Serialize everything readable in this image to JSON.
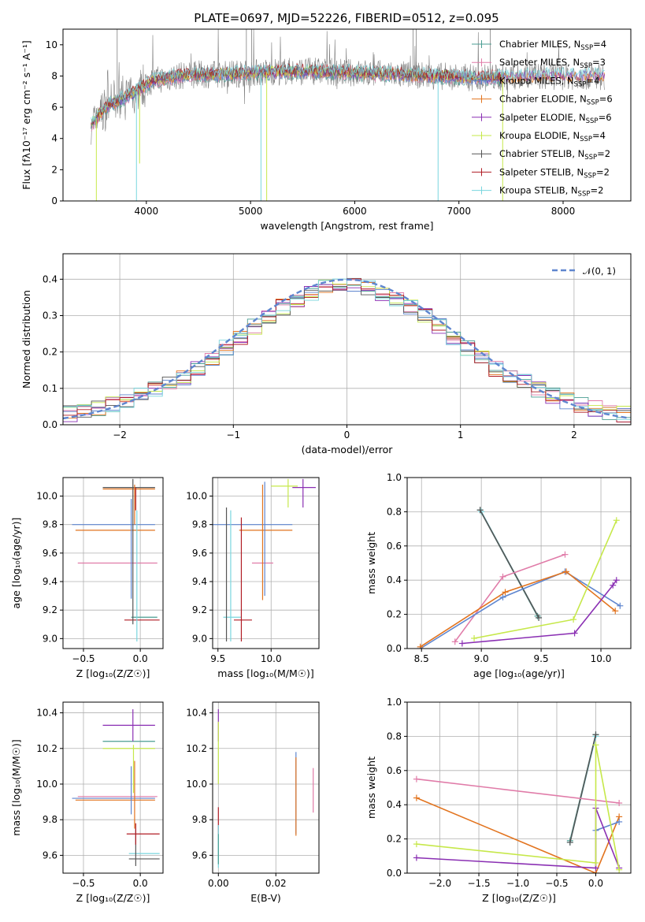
{
  "title": "PLATE=0697, MJD=52226, FIBERID=0512, z=0.095",
  "colors": {
    "s1": "#4a9e93",
    "s2": "#e07ba8",
    "s3": "#5f86cf",
    "s4": "#e2741f",
    "s5": "#8a2fb3",
    "s6": "#c6e84a",
    "s7": "#555555",
    "s8": "#b01d25",
    "s9": "#79d6de",
    "gauss": "#5f86cf"
  },
  "chart_data": [
    {
      "type": "line",
      "id": "spectrum",
      "title": "PLATE=0697, MJD=52226, FIBERID=0512, z=0.095",
      "xlabel": "wavelength [Angstrom, rest frame]",
      "ylabel": "Flux [fλ10⁻¹⁷ erg cm⁻² s⁻¹ A⁻¹]",
      "xlim": [
        3200,
        8650
      ],
      "ylim": [
        0,
        11
      ],
      "xticks": [
        "4000",
        "5000",
        "6000",
        "7000",
        "8000"
      ],
      "yticks": [
        "0",
        "2",
        "4",
        "6",
        "8",
        "10"
      ],
      "legend_position": "right",
      "legend": [
        {
          "model": "Chabrier MILES",
          "n": "4"
        },
        {
          "model": "Salpeter MILES",
          "n": "3"
        },
        {
          "model": "Kroupa MILES",
          "n": "4"
        },
        {
          "model": "Chabrier ELODIE",
          "n": "6"
        },
        {
          "model": "Salpeter ELODIE",
          "n": "6"
        },
        {
          "model": "Kroupa ELODIE",
          "n": "4"
        },
        {
          "model": "Chabrier STELIB",
          "n": "2"
        },
        {
          "model": "Salpeter STELIB",
          "n": "2"
        },
        {
          "model": "Kroupa STELIB",
          "n": "2"
        }
      ],
      "continuum": {
        "x": [
          3470,
          3550,
          3650,
          3750,
          3850,
          3950,
          4050,
          4150,
          4300,
          4500,
          4700,
          5000,
          5300,
          5600,
          6000,
          6400,
          6800,
          7100,
          7400,
          7700,
          8000,
          8300
        ],
        "y": [
          4.8,
          5.6,
          6.2,
          6.5,
          6.8,
          7.2,
          7.7,
          7.8,
          8.0,
          8.1,
          8.1,
          8.2,
          8.3,
          8.3,
          8.2,
          8.1,
          8.0,
          7.9,
          7.9,
          8.0,
          8.0,
          8.0
        ]
      },
      "dips": [
        {
          "x": 3520,
          "y": 0.0
        },
        {
          "x": 3905,
          "y": 0.0
        },
        {
          "x": 3935,
          "y": 2.4
        },
        {
          "x": 5100,
          "y": 0.0
        },
        {
          "x": 5155,
          "y": 0.0
        },
        {
          "x": 6800,
          "y": 0.0
        },
        {
          "x": 7420,
          "y": 0.0
        }
      ],
      "spikes": [
        {
          "x": 3720,
          "y": 11
        },
        {
          "x": 4960,
          "y": 11
        },
        {
          "x": 5010,
          "y": 11
        },
        {
          "x": 6560,
          "y": 11
        },
        {
          "x": 6590,
          "y": 11
        },
        {
          "x": 7300,
          "y": 11
        }
      ]
    },
    {
      "type": "line",
      "id": "residuals",
      "xlabel": "(data-model)/error",
      "ylabel": "Normed distribution",
      "xlim": [
        -2.5,
        2.5
      ],
      "ylim": [
        0,
        0.47
      ],
      "xticks": [
        "−2",
        "−1",
        "0",
        "1",
        "2"
      ],
      "yticks": [
        "0.0",
        "0.1",
        "0.2",
        "0.3",
        "0.4"
      ],
      "legend": [
        {
          "label": "𝒩(0, 1)"
        }
      ],
      "legend_position": "top-right",
      "bin_width": 0.125
    },
    {
      "type": "scatter",
      "id": "age-vs-Z",
      "xlabel": "Z [log₁₀(Z/Z☉)]",
      "ylabel": "age  [log₁₀(age/yr)]",
      "xlim": [
        -0.68,
        0.2
      ],
      "ylim": [
        8.93,
        10.13
      ],
      "xticks": [
        "−0.5",
        "0.0"
      ],
      "xtick_values": [
        -0.5,
        0.0
      ],
      "yticks": [
        "9.0",
        "9.2",
        "9.4",
        "9.6",
        "9.8",
        "10.0"
      ],
      "ytick_values": [
        9.0,
        9.2,
        9.4,
        9.6,
        9.8,
        10.0
      ],
      "segments": [
        {
          "c": "s3",
          "x": [
            -0.6,
            0.13
          ],
          "y": [
            9.8,
            9.8
          ]
        },
        {
          "c": "s4",
          "x": [
            -0.57,
            0.13
          ],
          "y": [
            9.76,
            9.76
          ]
        },
        {
          "c": "s2",
          "x": [
            -0.55,
            0.15
          ],
          "y": [
            9.53,
            9.53
          ]
        },
        {
          "c": "s7",
          "x": [
            -0.33,
            0.13
          ],
          "y": [
            10.06,
            10.06
          ]
        },
        {
          "c": "s4",
          "x": [
            -0.33,
            0.13
          ],
          "y": [
            10.05,
            10.05
          ]
        },
        {
          "c": "s8",
          "x": [
            -0.14,
            0.17
          ],
          "y": [
            9.13,
            9.13
          ]
        },
        {
          "c": "s1",
          "x": [
            -0.08,
            0.15
          ],
          "y": [
            9.15,
            9.15
          ]
        },
        {
          "c": "s3",
          "x": [
            -0.08,
            -0.08
          ],
          "y": [
            9.28,
            9.98
          ]
        },
        {
          "c": "s7",
          "x": [
            -0.065,
            -0.065
          ],
          "y": [
            9.1,
            10.12
          ]
        },
        {
          "c": "s4",
          "x": [
            -0.05,
            -0.05
          ],
          "y": [
            9.8,
            10.08
          ]
        },
        {
          "c": "s8",
          "x": [
            -0.04,
            -0.04
          ],
          "y": [
            9.9,
            10.06
          ]
        },
        {
          "c": "s9",
          "x": [
            -0.03,
            -0.03
          ],
          "y": [
            8.98,
            9.9
          ]
        }
      ]
    },
    {
      "type": "scatter",
      "id": "age-vs-mass",
      "xlabel": "mass [log₁₀(M/M☉)]",
      "ylabel": "",
      "xlim": [
        9.45,
        10.45
      ],
      "ylim": [
        8.93,
        10.13
      ],
      "xticks": [
        "9.5",
        "10.0"
      ],
      "xtick_values": [
        9.5,
        10.0
      ],
      "yticks": [
        "9.0",
        "9.2",
        "9.4",
        "9.6",
        "9.8",
        "10.0"
      ],
      "ytick_values": [
        9.0,
        9.2,
        9.4,
        9.6,
        9.8,
        10.0
      ],
      "segments": [
        {
          "c": "s3",
          "x": [
            9.45,
            10.2
          ],
          "y": [
            9.8,
            9.8
          ]
        },
        {
          "c": "s4",
          "x": [
            9.7,
            10.2
          ],
          "y": [
            9.76,
            9.76
          ]
        },
        {
          "c": "s2",
          "x": [
            9.82,
            10.02
          ],
          "y": [
            9.53,
            9.53
          ]
        },
        {
          "c": "s5",
          "x": [
            10.2,
            10.42
          ],
          "y": [
            10.06,
            10.06
          ]
        },
        {
          "c": "s6",
          "x": [
            10.0,
            10.25
          ],
          "y": [
            10.07,
            10.07
          ]
        },
        {
          "c": "s8",
          "x": [
            9.65,
            9.82
          ],
          "y": [
            9.13,
            9.13
          ]
        },
        {
          "c": "s9",
          "x": [
            9.55,
            9.72
          ],
          "y": [
            9.15,
            9.15
          ]
        },
        {
          "c": "s7",
          "x": [
            9.58,
            9.58
          ],
          "y": [
            8.98,
            9.92
          ]
        },
        {
          "c": "s9",
          "x": [
            9.62,
            9.62
          ],
          "y": [
            8.98,
            9.9
          ]
        },
        {
          "c": "s8",
          "x": [
            9.72,
            9.72
          ],
          "y": [
            8.98,
            9.85
          ]
        },
        {
          "c": "s3",
          "x": [
            9.94,
            9.94
          ],
          "y": [
            9.3,
            10.1
          ]
        },
        {
          "c": "s4",
          "x": [
            9.92,
            9.92
          ],
          "y": [
            9.27,
            10.08
          ]
        },
        {
          "c": "s6",
          "x": [
            10.16,
            10.16
          ],
          "y": [
            9.92,
            10.12
          ]
        },
        {
          "c": "s5",
          "x": [
            10.3,
            10.3
          ],
          "y": [
            9.92,
            10.12
          ]
        }
      ]
    },
    {
      "type": "line",
      "id": "weight-vs-age",
      "xlabel": "age  [log₁₀(age/yr)]",
      "ylabel": "mass weight",
      "xlim": [
        8.38,
        10.25
      ],
      "ylim": [
        0,
        1
      ],
      "xticks": [
        "8.5",
        "9.0",
        "9.5",
        "10.0"
      ],
      "xtick_values": [
        8.5,
        9.0,
        9.5,
        10.0
      ],
      "yticks": [
        "0.0",
        "0.2",
        "0.4",
        "0.6",
        "0.8",
        "1.0"
      ],
      "ytick_values": [
        0,
        0.2,
        0.4,
        0.6,
        0.8,
        1.0
      ],
      "series": [
        {
          "c": "s1",
          "x": [
            8.99,
            9.47
          ],
          "y": [
            0.81,
            0.19
          ]
        },
        {
          "c": "s9",
          "x": [
            9.0,
            9.48
          ],
          "y": [
            0.8,
            0.18
          ]
        },
        {
          "c": "s7",
          "x": [
            8.99,
            9.48
          ],
          "y": [
            0.81,
            0.18
          ]
        },
        {
          "c": "s2",
          "x": [
            8.78,
            9.18,
            9.7
          ],
          "y": [
            0.04,
            0.42,
            0.55
          ]
        },
        {
          "c": "s3",
          "x": [
            8.49,
            9.18,
            9.7,
            10.16
          ],
          "y": [
            0.0,
            0.3,
            0.45,
            0.25
          ]
        },
        {
          "c": "s4",
          "x": [
            8.49,
            9.2,
            9.71,
            10.12
          ],
          "y": [
            0.01,
            0.33,
            0.45,
            0.22
          ]
        },
        {
          "c": "s5",
          "x": [
            8.84,
            9.78,
            10.1,
            10.13
          ],
          "y": [
            0.03,
            0.09,
            0.37,
            0.4
          ]
        },
        {
          "c": "s6",
          "x": [
            8.94,
            9.77,
            10.13
          ],
          "y": [
            0.06,
            0.17,
            0.75
          ]
        }
      ]
    },
    {
      "type": "scatter",
      "id": "mass-vs-Z",
      "xlabel": "Z [log₁₀(Z/Z☉)]",
      "ylabel": "mass [log₁₀(M/M☉)]",
      "xlim": [
        -0.68,
        0.2
      ],
      "ylim": [
        9.5,
        10.46
      ],
      "xticks": [
        "−0.5",
        "0.0"
      ],
      "xtick_values": [
        -0.5,
        0.0
      ],
      "yticks": [
        "9.6",
        "9.8",
        "10.0",
        "10.2",
        "10.4"
      ],
      "ytick_values": [
        9.6,
        9.8,
        10.0,
        10.2,
        10.4
      ],
      "segments": [
        {
          "c": "s5",
          "x": [
            -0.33,
            0.13
          ],
          "y": [
            10.33,
            10.33
          ]
        },
        {
          "c": "s1",
          "x": [
            -0.33,
            0.13
          ],
          "y": [
            10.24,
            10.24
          ]
        },
        {
          "c": "s6",
          "x": [
            -0.33,
            0.13
          ],
          "y": [
            10.2,
            10.2
          ]
        },
        {
          "c": "s2",
          "x": [
            -0.55,
            0.15
          ],
          "y": [
            9.93,
            9.93
          ]
        },
        {
          "c": "s3",
          "x": [
            -0.6,
            0.13
          ],
          "y": [
            9.92,
            9.92
          ]
        },
        {
          "c": "s4",
          "x": [
            -0.57,
            0.13
          ],
          "y": [
            9.91,
            9.91
          ]
        },
        {
          "c": "s8",
          "x": [
            -0.12,
            0.17
          ],
          "y": [
            9.72,
            9.72
          ]
        },
        {
          "c": "s9",
          "x": [
            -0.1,
            0.17
          ],
          "y": [
            9.61,
            9.61
          ]
        },
        {
          "c": "s7",
          "x": [
            -0.1,
            0.17
          ],
          "y": [
            9.58,
            9.58
          ]
        },
        {
          "c": "s5",
          "x": [
            -0.065,
            -0.065
          ],
          "y": [
            10.24,
            10.42
          ]
        },
        {
          "c": "s3",
          "x": [
            -0.08,
            -0.08
          ],
          "y": [
            9.83,
            10.1
          ]
        },
        {
          "c": "s6",
          "x": [
            -0.06,
            -0.06
          ],
          "y": [
            9.95,
            10.22
          ]
        },
        {
          "c": "s7",
          "x": [
            -0.04,
            -0.04
          ],
          "y": [
            9.54,
            9.75
          ]
        },
        {
          "c": "s8",
          "x": [
            -0.04,
            -0.04
          ],
          "y": [
            9.66,
            9.78
          ]
        },
        {
          "c": "s4",
          "x": [
            -0.05,
            -0.05
          ],
          "y": [
            9.75,
            10.13
          ]
        }
      ]
    },
    {
      "type": "scatter",
      "id": "mass-vs-EBV",
      "xlabel": "E(B-V)",
      "ylabel": "",
      "xlim": [
        -0.002,
        0.035
      ],
      "ylim": [
        9.5,
        10.46
      ],
      "xticks": [
        "0.00",
        "0.02"
      ],
      "xtick_values": [
        0.0,
        0.02
      ],
      "yticks": [
        "9.6",
        "9.8",
        "10.0",
        "10.2",
        "10.4"
      ],
      "ytick_values": [
        9.6,
        9.8,
        10.0,
        10.2,
        10.4
      ],
      "segments": [
        {
          "c": "s5",
          "x": [
            0.0,
            0.0
          ],
          "y": [
            10.24,
            10.42
          ]
        },
        {
          "c": "s6",
          "x": [
            0.0,
            0.0
          ],
          "y": [
            10.0,
            10.35
          ]
        },
        {
          "c": "s8",
          "x": [
            0.0,
            0.0
          ],
          "y": [
            9.72,
            9.87
          ]
        },
        {
          "c": "s9",
          "x": [
            0.0,
            0.0
          ],
          "y": [
            9.53,
            9.77
          ]
        },
        {
          "c": "s1",
          "x": [
            0.0,
            0.0
          ],
          "y": [
            9.55,
            9.72
          ]
        },
        {
          "c": "s3",
          "x": [
            0.027,
            0.027
          ],
          "y": [
            9.72,
            10.18
          ]
        },
        {
          "c": "s4",
          "x": [
            0.027,
            0.027
          ],
          "y": [
            9.71,
            10.15
          ]
        },
        {
          "c": "s2",
          "x": [
            0.033,
            0.033
          ],
          "y": [
            9.84,
            10.09
          ]
        }
      ]
    },
    {
      "type": "line",
      "id": "weight-vs-Z",
      "xlabel": "Z [log₁₀(Z/Z☉)]",
      "ylabel": "mass weight",
      "xlim": [
        -2.42,
        0.45
      ],
      "ylim": [
        0,
        1
      ],
      "xticks": [
        "−2.0",
        "−1.5",
        "−1.0",
        "−0.5",
        "0.0"
      ],
      "xtick_values": [
        -2.0,
        -1.5,
        -1.0,
        -0.5,
        0.0
      ],
      "yticks": [
        "0.0",
        "0.2",
        "0.4",
        "0.6",
        "0.8",
        "1.0"
      ],
      "ytick_values": [
        0,
        0.2,
        0.4,
        0.6,
        0.8,
        1.0
      ],
      "series": [
        {
          "c": "s1",
          "x": [
            -0.33,
            0.0
          ],
          "y": [
            0.19,
            0.81
          ]
        },
        {
          "c": "s9",
          "x": [
            -0.33,
            0.0
          ],
          "y": [
            0.18,
            0.8
          ]
        },
        {
          "c": "s7",
          "x": [
            -0.33,
            0.0
          ],
          "y": [
            0.18,
            0.81
          ]
        },
        {
          "c": "s2",
          "x": [
            -2.3,
            0.3
          ],
          "y": [
            0.55,
            0.41
          ]
        },
        {
          "c": "s4",
          "x": [
            -2.3,
            0.0,
            0.3
          ],
          "y": [
            0.44,
            0.0,
            0.33
          ]
        },
        {
          "c": "s3",
          "x": [
            0.0,
            0.3
          ],
          "y": [
            0.25,
            0.3
          ]
        },
        {
          "c": "s5",
          "x": [
            -2.3,
            0.0,
            0.0,
            0.3
          ],
          "y": [
            0.09,
            0.03,
            0.38,
            0.03
          ]
        },
        {
          "c": "s6",
          "x": [
            -2.3,
            0.0,
            0.0,
            0.3
          ],
          "y": [
            0.17,
            0.06,
            0.75,
            0.02
          ]
        }
      ]
    }
  ]
}
